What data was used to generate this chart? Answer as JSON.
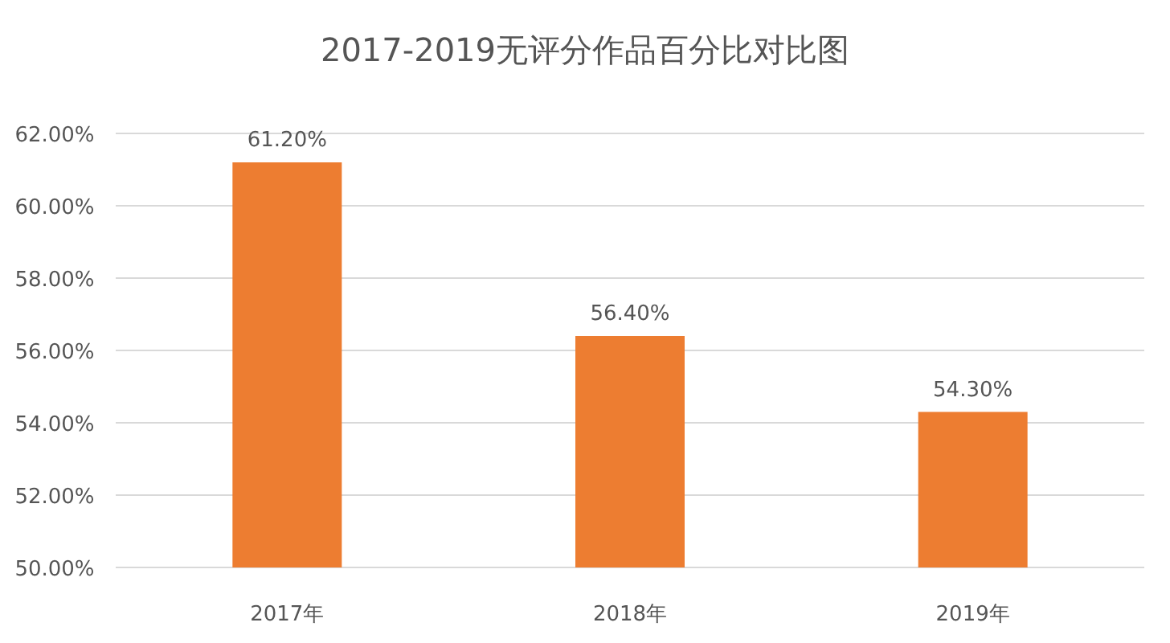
{
  "chart_data": {
    "type": "bar",
    "title": "2017-2019无评分作品百分比对比图",
    "categories": [
      "2017年",
      "2018年",
      "2019年"
    ],
    "values": [
      61.2,
      56.4,
      54.3
    ],
    "value_labels": [
      "61.20%",
      "56.40%",
      "54.30%"
    ],
    "color": "#ed7d31",
    "ylim": [
      50,
      62
    ],
    "yticks": [
      {
        "value": 50,
        "label": "50.00%"
      },
      {
        "value": 52,
        "label": "52.00%"
      },
      {
        "value": 54,
        "label": "54.00%"
      },
      {
        "value": 56,
        "label": "56.00%"
      },
      {
        "value": 58,
        "label": "58.00%"
      },
      {
        "value": 60,
        "label": "60.00%"
      },
      {
        "value": 62,
        "label": "62.00%"
      }
    ],
    "grid": "y"
  }
}
